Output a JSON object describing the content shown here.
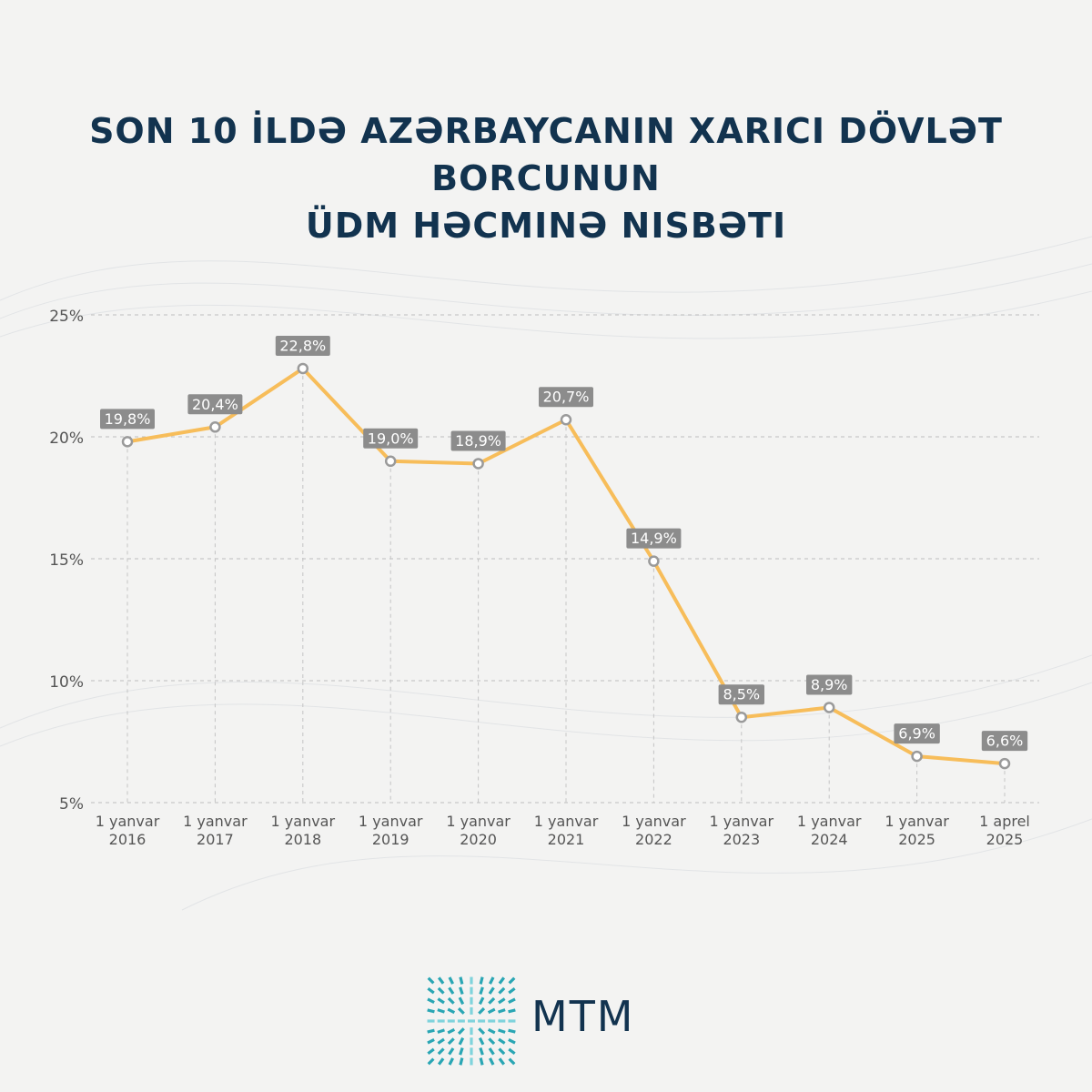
{
  "title": {
    "line1": "SON 10 İLDƏ AZƏRBAYCANIN XARICI DÖVLƏT BORCUNUN",
    "line2": "ÜDM HƏCMINƏ NISBƏTI"
  },
  "logo": {
    "text": "MTM"
  },
  "colors": {
    "line": "#f7bd5a",
    "title": "#12334f",
    "label_bg": "#8c8c8c",
    "axis_text": "#555555"
  },
  "chart_data": {
    "type": "line",
    "categories": [
      [
        "1 yanvar",
        "2016"
      ],
      [
        "1 yanvar",
        "2017"
      ],
      [
        "1 yanvar",
        "2018"
      ],
      [
        "1 yanvar",
        "2019"
      ],
      [
        "1 yanvar",
        "2020"
      ],
      [
        "1 yanvar",
        "2021"
      ],
      [
        "1 yanvar",
        "2022"
      ],
      [
        "1 yanvar",
        "2023"
      ],
      [
        "1 yanvar",
        "2024"
      ],
      [
        "1 yanvar",
        "2025"
      ],
      [
        "1 aprel",
        "2025"
      ]
    ],
    "values": [
      19.8,
      20.4,
      22.8,
      19.0,
      18.9,
      20.7,
      14.9,
      8.5,
      8.9,
      6.9,
      6.6
    ],
    "data_labels": [
      "19,8%",
      "20,4%",
      "22,8%",
      "19,0%",
      "18,9%",
      "20,7%",
      "14,9%",
      "8,5%",
      "8,9%",
      "6,9%",
      "6,6%"
    ],
    "ylim": [
      5,
      25
    ],
    "yticks": [
      5,
      10,
      15,
      20,
      25
    ],
    "ytick_labels": [
      "5%",
      "10%",
      "15%",
      "20%",
      "25%"
    ],
    "grid": true
  }
}
